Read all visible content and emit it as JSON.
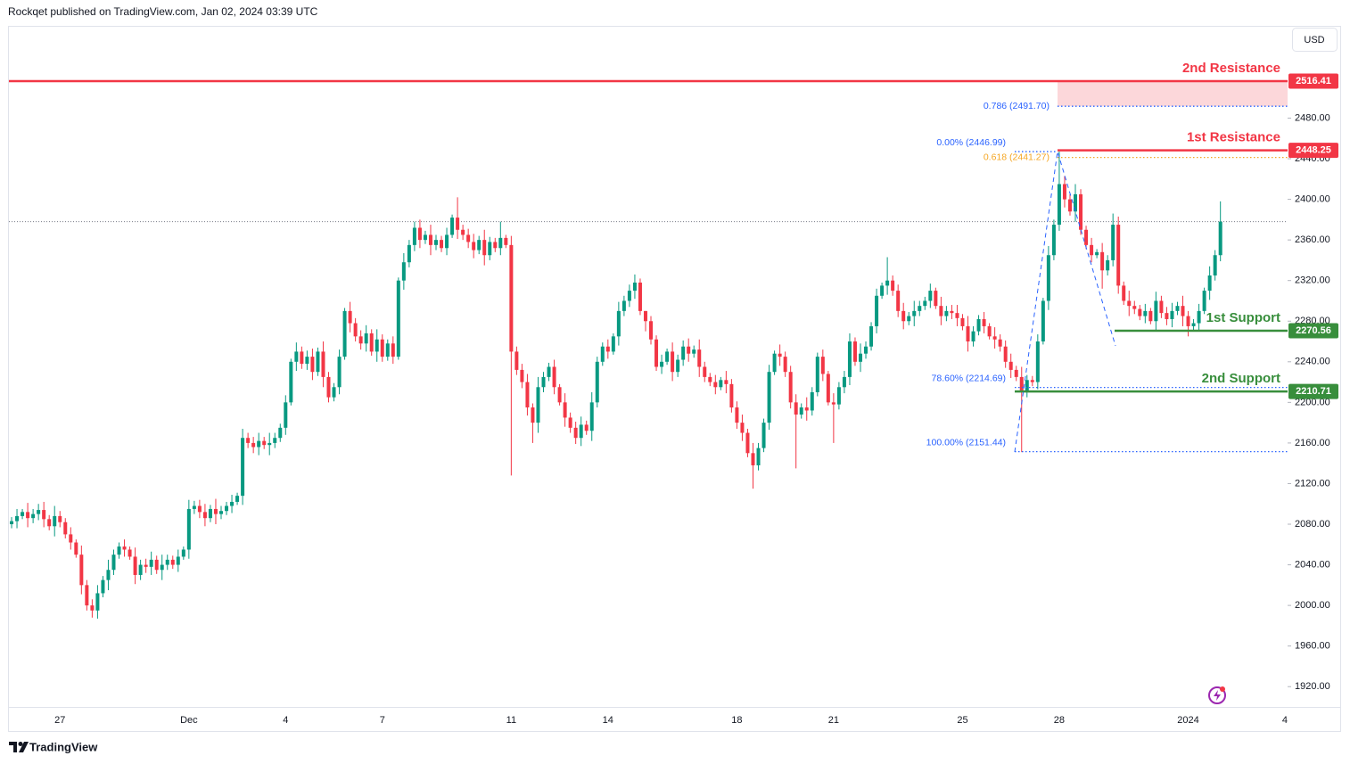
{
  "header": {
    "byline": "Rockqet published on TradingView.com, Jan 02, 2024 03:39 UTC",
    "currency": "USD"
  },
  "footer": {
    "brand": "TradingView"
  },
  "chart_data": {
    "type": "candlestick",
    "up_color": "#089981",
    "down_color": "#f23645",
    "ylim": [
      1900,
      2570
    ],
    "yticks": [
      {
        "value": 1920,
        "label": "1920.00"
      },
      {
        "value": 1960,
        "label": "1960.00"
      },
      {
        "value": 2000,
        "label": "2000.00"
      },
      {
        "value": 2040,
        "label": "2040.00"
      },
      {
        "value": 2080,
        "label": "2080.00"
      },
      {
        "value": 2120,
        "label": "2120.00"
      },
      {
        "value": 2160,
        "label": "2160.00"
      },
      {
        "value": 2200,
        "label": "2200.00"
      },
      {
        "value": 2240,
        "label": "2240.00"
      },
      {
        "value": 2280,
        "label": "2280.00"
      },
      {
        "value": 2320,
        "label": "2320.00"
      },
      {
        "value": 2360,
        "label": "2360.00"
      },
      {
        "value": 2400,
        "label": "2400.00"
      },
      {
        "value": 2440,
        "label": "2440.00"
      },
      {
        "value": 2480,
        "label": "2480.00"
      }
    ],
    "categories": [
      null,
      null,
      null,
      null,
      null,
      null,
      null,
      null,
      null,
      "27",
      null,
      null,
      null,
      null,
      null,
      null,
      null,
      null,
      null,
      null,
      null,
      null,
      null,
      null,
      null,
      null,
      null,
      null,
      null,
      null,
      null,
      null,
      null,
      "Dec",
      null,
      null,
      null,
      null,
      null,
      null,
      null,
      null,
      null,
      null,
      null,
      null,
      null,
      null,
      null,
      null,
      null,
      "4",
      null,
      null,
      null,
      null,
      null,
      null,
      null,
      null,
      null,
      null,
      null,
      null,
      null,
      null,
      null,
      null,
      null,
      "7",
      null,
      null,
      null,
      null,
      null,
      null,
      null,
      null,
      null,
      null,
      null,
      null,
      null,
      null,
      null,
      null,
      null,
      null,
      null,
      null,
      null,
      null,
      null,
      "11",
      null,
      null,
      null,
      null,
      null,
      null,
      null,
      null,
      null,
      null,
      null,
      null,
      null,
      null,
      null,
      null,
      null,
      "14",
      null,
      null,
      null,
      null,
      null,
      null,
      null,
      null,
      null,
      null,
      null,
      null,
      null,
      null,
      null,
      null,
      null,
      null,
      null,
      null,
      null,
      null,
      null,
      "18",
      null,
      null,
      null,
      null,
      null,
      null,
      null,
      null,
      null,
      null,
      null,
      null,
      null,
      null,
      null,
      null,
      null,
      "21",
      null,
      null,
      null,
      null,
      null,
      null,
      null,
      null,
      null,
      null,
      null,
      null,
      null,
      null,
      null,
      null,
      null,
      null,
      null,
      null,
      null,
      null,
      null,
      "25",
      null,
      null,
      null,
      null,
      null,
      null,
      null,
      null,
      null,
      null,
      null,
      null,
      null,
      null,
      null,
      null,
      null,
      "28",
      null,
      null,
      null,
      null,
      null,
      null,
      null,
      null,
      null,
      null,
      null,
      null,
      null,
      null,
      null,
      null,
      null,
      null,
      null,
      null,
      null,
      null,
      null,
      "2024",
      null,
      null,
      null,
      null,
      null,
      null,
      null,
      null,
      null,
      null,
      null,
      null,
      null,
      null,
      null,
      null,
      null,
      "4"
    ],
    "open": [
      2080,
      2083,
      2088,
      2092,
      2086,
      2090,
      2094,
      2085,
      2078,
      2088,
      2082,
      2070,
      2062,
      2050,
      2020,
      2000,
      1995,
      2012,
      2025,
      2035,
      2050,
      2058,
      2055,
      2048,
      2030,
      2040,
      2038,
      2045,
      2035,
      2040,
      2045,
      2040,
      2048,
      2055,
      2095,
      2098,
      2092,
      2086,
      2095,
      2090,
      2093,
      2098,
      2102,
      2108,
      2165,
      2160,
      2156,
      2162,
      2158,
      2160,
      2165,
      2175,
      2200,
      2240,
      2250,
      2238,
      2245,
      2230,
      2250,
      2225,
      2205,
      2215,
      2245,
      2290,
      2278,
      2265,
      2258,
      2268,
      2250,
      2262,
      2245,
      2258,
      2245,
      2320,
      2338,
      2355,
      2372,
      2360,
      2365,
      2355,
      2360,
      2352,
      2365,
      2382,
      2370,
      2365,
      2358,
      2350,
      2360,
      2345,
      2358,
      2352,
      2362,
      2355,
      2250,
      2232,
      2220,
      2195,
      2180,
      2215,
      2225,
      2235,
      2215,
      2200,
      2185,
      2175,
      2165,
      2178,
      2172,
      2200,
      2240,
      2255,
      2250,
      2265,
      2290,
      2300,
      2310,
      2318,
      2290,
      2280,
      2262,
      2235,
      2240,
      2250,
      2230,
      2242,
      2255,
      2248,
      2252,
      2235,
      2225,
      2220,
      2215,
      2222,
      2218,
      2195,
      2180,
      2170,
      2150,
      2138,
      2155,
      2180,
      2230,
      2248,
      2245,
      2230,
      2200,
      2188,
      2195,
      2192,
      2210,
      2245,
      2228,
      2200,
      2198,
      2215,
      2225,
      2260,
      2240,
      2248,
      2255,
      2275,
      2305,
      2315,
      2320,
      2310,
      2290,
      2280,
      2285,
      2290,
      2295,
      2300,
      2310,
      2295,
      2285,
      2290,
      2288,
      2283,
      2275,
      2260,
      2270,
      2282,
      2275,
      2265,
      2262,
      2255,
      2240,
      2232,
      2225,
      2210,
      2222,
      2220,
      2260,
      2300,
      2345,
      2375,
      2415,
      2400,
      2388,
      2405,
      2370,
      2355,
      2345,
      2348,
      2330,
      2340,
      2375,
      2315,
      2300,
      2295,
      2292,
      2285,
      2290,
      2280,
      2300,
      2288,
      2282,
      2290,
      2295,
      2285,
      2275,
      2278,
      2290,
      2310,
      2325,
      2345,
      null,
      null,
      null,
      null,
      null,
      null,
      null,
      null,
      null,
      null,
      null,
      null
    ],
    "high": [
      2087,
      2095,
      2095,
      2101,
      2095,
      2100,
      2102,
      2089,
      2098,
      2093,
      2086,
      2077,
      2065,
      2059,
      2025,
      2006,
      2020,
      2029,
      2045,
      2055,
      2062,
      2065,
      2058,
      2057,
      2045,
      2046,
      2053,
      2049,
      2050,
      2050,
      2049,
      2055,
      2058,
      2104,
      2103,
      2104,
      2100,
      2099,
      2105,
      2098,
      2102,
      2109,
      2111,
      2174,
      2170,
      2166,
      2170,
      2166,
      2170,
      2170,
      2179,
      2207,
      2243,
      2259,
      2255,
      2251,
      2253,
      2254,
      2260,
      2230,
      2219,
      2252,
      2293,
      2299,
      2283,
      2271,
      2276,
      2272,
      2272,
      2267,
      2262,
      2265,
      2323,
      2347,
      2360,
      2378,
      2380,
      2369,
      2375,
      2365,
      2364,
      2372,
      2385,
      2402,
      2375,
      2371,
      2366,
      2364,
      2370,
      2363,
      2362,
      2378,
      2365,
      2364,
      2255,
      2238,
      2228,
      2199,
      2225,
      2230,
      2239,
      2242,
      2218,
      2209,
      2190,
      2181,
      2186,
      2182,
      2210,
      2245,
      2259,
      2262,
      2268,
      2299,
      2305,
      2316,
      2326,
      2322,
      2290,
      2285,
      2266,
      2247,
      2253,
      2259,
      2247,
      2261,
      2263,
      2256,
      2262,
      2240,
      2229,
      2227,
      2225,
      2231,
      2223,
      2201,
      2188,
      2174,
      2160,
      2160,
      2184,
      2237,
      2251,
      2257,
      2250,
      2236,
      2208,
      2199,
      2205,
      2215,
      2249,
      2252,
      2231,
      2209,
      2220,
      2231,
      2268,
      2264,
      2258,
      2260,
      2279,
      2312,
      2318,
      2343,
      2325,
      2316,
      2298,
      2289,
      2300,
      2300,
      2304,
      2317,
      2313,
      2304,
      2295,
      2296,
      2296,
      2287,
      2285,
      2275,
      2286,
      2289,
      2278,
      2274,
      2267,
      2261,
      2248,
      2236,
      2235,
      2227,
      2226,
      2267,
      2303,
      2354,
      2380,
      2447,
      2423,
      2405,
      2415,
      2410,
      2374,
      2362,
      2351,
      2357,
      2345,
      2386,
      2383,
      2319,
      2310,
      2300,
      2296,
      2297,
      2293,
      2309,
      2305,
      2294,
      2298,
      2299,
      2305,
      2290,
      2282,
      2297,
      2313,
      2334,
      2350,
      2398,
      null,
      null,
      null,
      null,
      null,
      null,
      null,
      null,
      null,
      null,
      null,
      null
    ],
    "low": [
      2076,
      2076,
      2085,
      2077,
      2081,
      2084,
      2077,
      2074,
      2068,
      2077,
      2066,
      2055,
      2047,
      2011,
      1995,
      1988,
      1987,
      2008,
      2015,
      2030,
      2046,
      2048,
      2045,
      2021,
      2025,
      2032,
      2030,
      2031,
      2025,
      2035,
      2036,
      2033,
      2045,
      2046,
      2090,
      2086,
      2078,
      2082,
      2080,
      2085,
      2089,
      2091,
      2099,
      2099,
      2155,
      2150,
      2148,
      2154,
      2148,
      2155,
      2161,
      2168,
      2197,
      2231,
      2233,
      2232,
      2222,
      2226,
      2215,
      2200,
      2201,
      2208,
      2242,
      2269,
      2260,
      2252,
      2250,
      2246,
      2240,
      2240,
      2241,
      2238,
      2242,
      2311,
      2333,
      2349,
      2352,
      2356,
      2345,
      2350,
      2348,
      2345,
      2362,
      2361,
      2360,
      2352,
      2342,
      2346,
      2335,
      2340,
      2348,
      2345,
      2352,
      2128,
      2227,
      2214,
      2187,
      2160,
      2170,
      2210,
      2221,
      2208,
      2197,
      2176,
      2170,
      2159,
      2157,
      2168,
      2162,
      2195,
      2236,
      2243,
      2247,
      2256,
      2285,
      2294,
      2302,
      2286,
      2270,
      2257,
      2231,
      2228,
      2237,
      2221,
      2225,
      2236,
      2240,
      2244,
      2225,
      2220,
      2216,
      2208,
      2212,
      2209,
      2190,
      2174,
      2162,
      2146,
      2115,
      2133,
      2151,
      2173,
      2227,
      2236,
      2225,
      2194,
      2135,
      2184,
      2182,
      2187,
      2206,
      2221,
      2197,
      2160,
      2193,
      2209,
      2217,
      2236,
      2230,
      2243,
      2251,
      2268,
      2302,
      2306,
      2305,
      2284,
      2272,
      2276,
      2275,
      2285,
      2291,
      2293,
      2292,
      2276,
      2280,
      2282,
      2275,
      2271,
      2250,
      2255,
      2266,
      2268,
      2262,
      2253,
      2250,
      2234,
      2224,
      2221,
      2151,
      2205,
      2216,
      2213,
      2257,
      2291,
      2340,
      2369,
      2392,
      2384,
      2378,
      2365,
      2351,
      2338,
      2342,
      2312,
      2325,
      2334,
      2307,
      2296,
      2285,
      2287,
      2281,
      2278,
      2277,
      2271,
      2283,
      2276,
      2274,
      2286,
      2275,
      2265,
      2271,
      2271,
      2287,
      2301,
      2320,
      2339,
      null,
      null,
      null,
      null,
      null,
      null,
      null,
      null,
      null,
      null,
      null,
      null
    ],
    "close": [
      2083,
      2088,
      2092,
      2086,
      2090,
      2094,
      2085,
      2078,
      2088,
      2082,
      2070,
      2062,
      2050,
      2020,
      2000,
      1995,
      2012,
      2025,
      2035,
      2050,
      2058,
      2055,
      2048,
      2030,
      2040,
      2038,
      2045,
      2035,
      2040,
      2045,
      2040,
      2048,
      2055,
      2095,
      2098,
      2092,
      2086,
      2095,
      2090,
      2093,
      2098,
      2102,
      2108,
      2165,
      2160,
      2156,
      2162,
      2158,
      2160,
      2165,
      2175,
      2200,
      2240,
      2250,
      2238,
      2245,
      2230,
      2250,
      2225,
      2205,
      2215,
      2245,
      2290,
      2278,
      2265,
      2258,
      2268,
      2250,
      2262,
      2245,
      2258,
      2245,
      2320,
      2338,
      2355,
      2372,
      2360,
      2365,
      2355,
      2360,
      2352,
      2365,
      2382,
      2370,
      2365,
      2358,
      2350,
      2360,
      2345,
      2358,
      2352,
      2362,
      2355,
      2250,
      2232,
      2220,
      2195,
      2180,
      2215,
      2225,
      2235,
      2215,
      2200,
      2185,
      2175,
      2165,
      2178,
      2172,
      2200,
      2240,
      2255,
      2250,
      2265,
      2290,
      2300,
      2310,
      2318,
      2290,
      2280,
      2262,
      2235,
      2240,
      2250,
      2230,
      2242,
      2255,
      2248,
      2252,
      2235,
      2225,
      2220,
      2215,
      2222,
      2218,
      2195,
      2180,
      2170,
      2150,
      2138,
      2155,
      2180,
      2230,
      2248,
      2245,
      2230,
      2200,
      2188,
      2195,
      2192,
      2210,
      2245,
      2228,
      2200,
      2198,
      2215,
      2225,
      2260,
      2240,
      2248,
      2255,
      2275,
      2305,
      2315,
      2320,
      2310,
      2290,
      2280,
      2285,
      2290,
      2295,
      2300,
      2310,
      2295,
      2285,
      2290,
      2288,
      2283,
      2275,
      2260,
      2270,
      2282,
      2275,
      2265,
      2262,
      2255,
      2240,
      2232,
      2225,
      2210,
      2222,
      2220,
      2260,
      2300,
      2345,
      2375,
      2415,
      2400,
      2388,
      2405,
      2370,
      2355,
      2345,
      2348,
      2330,
      2340,
      2375,
      2315,
      2300,
      2295,
      2292,
      2285,
      2290,
      2280,
      2300,
      2288,
      2282,
      2290,
      2295,
      2285,
      2275,
      2278,
      2290,
      2310,
      2325,
      2345,
      2378,
      null,
      null,
      null,
      null,
      null,
      null,
      null,
      null,
      null,
      null,
      null,
      null
    ],
    "levels": [
      {
        "label": "2nd Resistance",
        "value": 2516.41,
        "color": "#f23645"
      },
      {
        "label": "1st Resistance",
        "value": 2448.25,
        "color": "#f23645"
      },
      {
        "label": "1st Support",
        "value": 2270.56,
        "color": "#388e3c"
      },
      {
        "label": "2nd Support",
        "value": 2210.71,
        "color": "#388e3c"
      }
    ],
    "fibs": [
      {
        "label": "0.786 (2491.70)",
        "value": 2491.7,
        "color": "#2962ff"
      },
      {
        "label": "0.618 (2441.27)",
        "value": 2441.27,
        "color": "#f5a623"
      },
      {
        "label": "0.00% (2446.99)",
        "value": 2446.99,
        "color": "#2962ff"
      },
      {
        "label": "78.60% (2214.69)",
        "value": 2214.69,
        "color": "#2962ff"
      },
      {
        "label": "100.00% (2151.44)",
        "value": 2151.44,
        "color": "#2962ff"
      }
    ]
  }
}
